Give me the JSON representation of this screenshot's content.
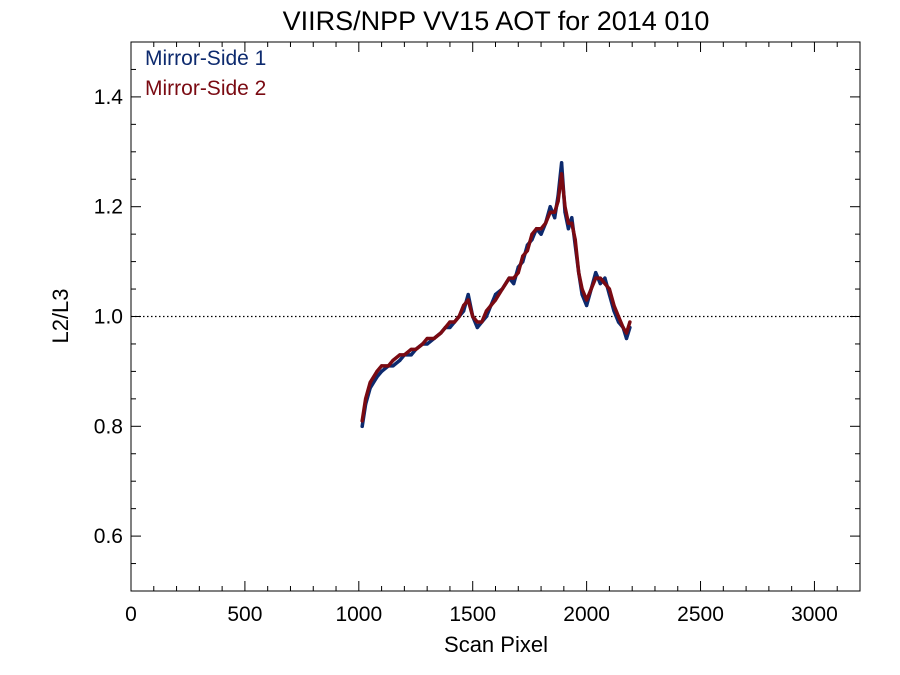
{
  "chart_data": {
    "type": "line",
    "title": "VIIRS/NPP VV15 AOT for 2014 010",
    "xlabel": "Scan Pixel",
    "ylabel": "L2/L3",
    "xlim": [
      0,
      3200
    ],
    "ylim": [
      0.5,
      1.5
    ],
    "xticks": [
      0,
      500,
      1000,
      1500,
      2000,
      2500,
      3000
    ],
    "xtick_labels": [
      "0",
      "500",
      "1000",
      "1500",
      "2000",
      "2500",
      "3000"
    ],
    "yticks": [
      0.6,
      0.8,
      1.0,
      1.2,
      1.4
    ],
    "ytick_labels": [
      "0.6",
      "0.8",
      "1.0",
      "1.2",
      "1.4"
    ],
    "reference_line": {
      "y": 1.0,
      "style": "dotted"
    },
    "legend_position": "top-left",
    "series": [
      {
        "name": "Mirror-Side 1",
        "color": "#0d2a6e",
        "x": [
          1015,
          1030,
          1050,
          1080,
          1100,
          1130,
          1150,
          1180,
          1200,
          1230,
          1250,
          1280,
          1300,
          1330,
          1360,
          1380,
          1400,
          1420,
          1440,
          1460,
          1480,
          1500,
          1520,
          1540,
          1560,
          1580,
          1600,
          1630,
          1660,
          1680,
          1700,
          1720,
          1740,
          1760,
          1780,
          1800,
          1820,
          1840,
          1860,
          1875,
          1890,
          1905,
          1920,
          1935,
          1950,
          1965,
          1980,
          2000,
          2020,
          2040,
          2060,
          2080,
          2100,
          2120,
          2140,
          2160,
          2175,
          2190
        ],
        "values": [
          0.8,
          0.84,
          0.87,
          0.89,
          0.9,
          0.91,
          0.91,
          0.92,
          0.93,
          0.93,
          0.94,
          0.95,
          0.95,
          0.96,
          0.97,
          0.98,
          0.98,
          0.99,
          1.0,
          1.01,
          1.04,
          1.0,
          0.98,
          0.99,
          1.0,
          1.02,
          1.04,
          1.05,
          1.07,
          1.06,
          1.09,
          1.1,
          1.13,
          1.14,
          1.16,
          1.15,
          1.17,
          1.2,
          1.18,
          1.22,
          1.28,
          1.19,
          1.16,
          1.18,
          1.13,
          1.08,
          1.04,
          1.02,
          1.05,
          1.08,
          1.06,
          1.07,
          1.04,
          1.01,
          0.99,
          0.98,
          0.96,
          0.98
        ]
      },
      {
        "name": "Mirror-Side 2",
        "color": "#7a0a12",
        "x": [
          1015,
          1030,
          1050,
          1080,
          1100,
          1130,
          1150,
          1180,
          1200,
          1230,
          1250,
          1280,
          1300,
          1330,
          1360,
          1380,
          1400,
          1420,
          1440,
          1460,
          1480,
          1500,
          1520,
          1540,
          1560,
          1580,
          1600,
          1630,
          1660,
          1680,
          1700,
          1720,
          1740,
          1760,
          1780,
          1800,
          1820,
          1840,
          1860,
          1875,
          1890,
          1905,
          1920,
          1935,
          1950,
          1965,
          1980,
          2000,
          2020,
          2040,
          2060,
          2080,
          2100,
          2120,
          2140,
          2160,
          2175,
          2190
        ],
        "values": [
          0.81,
          0.85,
          0.88,
          0.9,
          0.91,
          0.91,
          0.92,
          0.93,
          0.93,
          0.94,
          0.94,
          0.95,
          0.96,
          0.96,
          0.97,
          0.98,
          0.99,
          0.99,
          1.0,
          1.02,
          1.03,
          1.0,
          0.99,
          0.99,
          1.01,
          1.02,
          1.03,
          1.05,
          1.07,
          1.07,
          1.08,
          1.11,
          1.12,
          1.15,
          1.16,
          1.16,
          1.17,
          1.19,
          1.19,
          1.21,
          1.26,
          1.2,
          1.17,
          1.17,
          1.14,
          1.08,
          1.05,
          1.03,
          1.05,
          1.07,
          1.07,
          1.06,
          1.05,
          1.02,
          1.0,
          0.98,
          0.97,
          0.99
        ]
      }
    ]
  }
}
